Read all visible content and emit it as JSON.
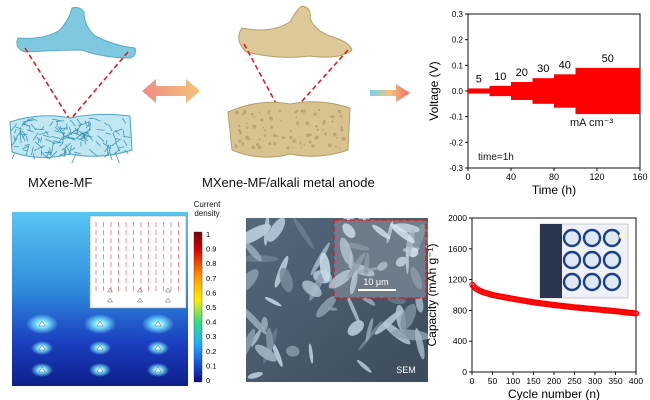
{
  "top_left": {
    "caption": "MXene-MF"
  },
  "top_middle": {
    "caption": "MXene-MF/alkali metal anode"
  },
  "colors": {
    "mxene": "#7ec9df",
    "alkali": "#d8c28f",
    "trace": "#ff0000",
    "arrow_left": "#f28b82",
    "arrow_right": "#f4c27a",
    "dash": "#e11d1d"
  },
  "voltage_chart": {
    "chart_data": {
      "type": "line",
      "xlabel": "Time (h)",
      "ylabel": "Voltage (V)",
      "xlim": [
        0,
        160
      ],
      "ylim": [
        -0.3,
        0.3
      ],
      "x_ticks": [
        "0",
        "40",
        "80",
        "120",
        "160"
      ],
      "y_ticks": [
        "0.3",
        "0.2",
        "0.1",
        "0.0",
        "-0.1",
        "-0.2",
        "-0.3"
      ],
      "segments": [
        {
          "label": "5",
          "x_start": 0,
          "x_end": 20,
          "amplitude": 0.01
        },
        {
          "label": "10",
          "x_start": 20,
          "x_end": 40,
          "amplitude": 0.02
        },
        {
          "label": "20",
          "x_start": 40,
          "x_end": 60,
          "amplitude": 0.035
        },
        {
          "label": "30",
          "x_start": 60,
          "x_end": 80,
          "amplitude": 0.05
        },
        {
          "label": "40",
          "x_start": 80,
          "x_end": 100,
          "amplitude": 0.065
        },
        {
          "label": "50",
          "x_start": 100,
          "x_end": 160,
          "amplitude": 0.09
        }
      ],
      "unit_label": "mA cm⁻³",
      "annotation": "time=1h"
    }
  },
  "current_density": {
    "colorbar_title_line1": "Current",
    "colorbar_title_line2": "density",
    "colorbar_ticks": [
      "1",
      "0.9",
      "0.8",
      "0.7",
      "0.6",
      "0.5",
      "0.4",
      "0.3",
      "0.2",
      "0.1",
      "0"
    ]
  },
  "sem": {
    "scale_bar": "10 μm",
    "label": "SEM"
  },
  "capacity_chart": {
    "chart_data": {
      "type": "scatter",
      "xlabel": "Cycle number (n)",
      "ylabel": "Capacity (mAh g⁻¹)",
      "xlim": [
        0,
        400
      ],
      "ylim": [
        0,
        2000
      ],
      "x_ticks": [
        "0",
        "50",
        "100",
        "150",
        "200",
        "250",
        "300",
        "350",
        "400"
      ],
      "y_ticks": [
        "2000",
        "1600",
        "1200",
        "800",
        "400",
        "0"
      ],
      "x": [
        1,
        10,
        25,
        50,
        75,
        100,
        150,
        200,
        250,
        300,
        350,
        400
      ],
      "y": [
        1130,
        1080,
        1040,
        1000,
        975,
        950,
        905,
        870,
        840,
        815,
        790,
        760
      ]
    }
  }
}
